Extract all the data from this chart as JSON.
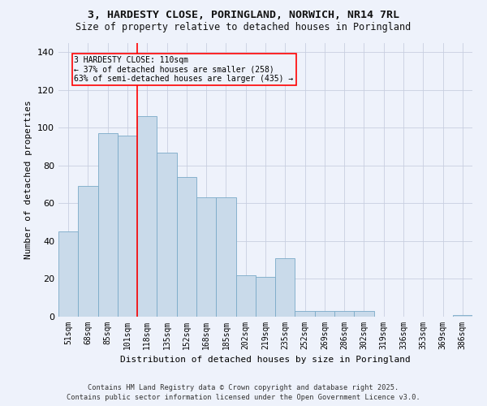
{
  "title_line1": "3, HARDESTY CLOSE, PORINGLAND, NORWICH, NR14 7RL",
  "title_line2": "Size of property relative to detached houses in Poringland",
  "xlabel": "Distribution of detached houses by size in Poringland",
  "ylabel": "Number of detached properties",
  "categories": [
    "51sqm",
    "68sqm",
    "85sqm",
    "101sqm",
    "118sqm",
    "135sqm",
    "152sqm",
    "168sqm",
    "185sqm",
    "202sqm",
    "219sqm",
    "235sqm",
    "252sqm",
    "269sqm",
    "286sqm",
    "302sqm",
    "319sqm",
    "336sqm",
    "353sqm",
    "369sqm",
    "386sqm"
  ],
  "values": [
    45,
    69,
    97,
    96,
    106,
    87,
    74,
    63,
    63,
    22,
    21,
    31,
    3,
    3,
    3,
    3,
    0,
    0,
    0,
    0,
    1
  ],
  "bar_color": "#c9daea",
  "bar_edge_color": "#7aaac8",
  "bar_edge_width": 0.6,
  "red_line_x": 3.5,
  "annotation_line1": "3 HARDESTY CLOSE: 110sqm",
  "annotation_line2": "← 37% of detached houses are smaller (258)",
  "annotation_line3": "63% of semi-detached houses are larger (435) →",
  "ylim": [
    0,
    145
  ],
  "yticks": [
    0,
    20,
    40,
    60,
    80,
    100,
    120,
    140
  ],
  "background_color": "#eef2fb",
  "grid_color": "#c8cfe0",
  "footer_line1": "Contains HM Land Registry data © Crown copyright and database right 2025.",
  "footer_line2": "Contains public sector information licensed under the Open Government Licence v3.0."
}
